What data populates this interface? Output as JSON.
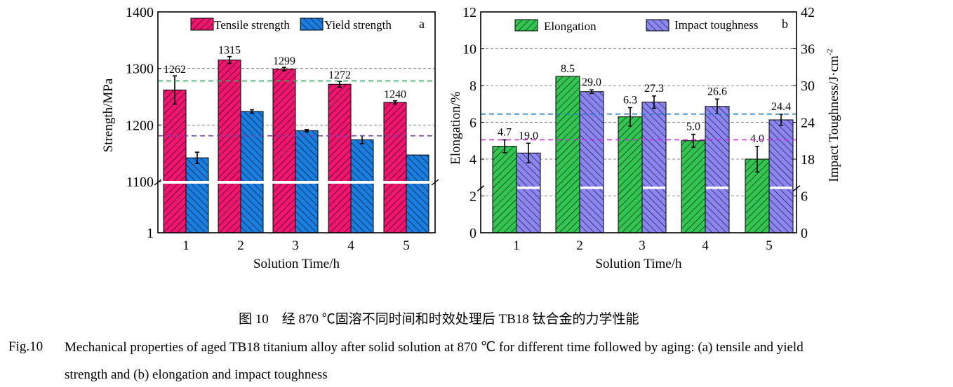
{
  "chart_data": [
    {
      "type": "bar",
      "panel_label": "a",
      "xlabel": "Solution Time/h",
      "ylabel": "Strength/MPa",
      "categories": [
        "1",
        "2",
        "3",
        "4",
        "5"
      ],
      "y_ticks": [
        "1400",
        "1300",
        "1200",
        "1100",
        "1"
      ],
      "axis_break": 1100,
      "ylim": [
        1100,
        1400
      ],
      "series": [
        {
          "name": "Tensile strength",
          "values": [
            1262,
            1315,
            1299,
            1272,
            1240
          ],
          "errors": [
            25,
            6,
            3,
            5,
            3
          ],
          "labels": [
            "1262",
            "1315",
            "1299",
            "1272",
            "1240"
          ],
          "color": "#f0156e"
        },
        {
          "name": "Yield strength",
          "values": [
            1142,
            1224,
            1190,
            1174,
            1147
          ],
          "errors": [
            10,
            3,
            2,
            7,
            0
          ],
          "color": "#1a7de0"
        }
      ],
      "reference_lines": [
        {
          "value": 1278,
          "color": "#2bb35a"
        },
        {
          "value": 1181,
          "color": "#7b3fb0"
        }
      ],
      "grid": "dashed horizontal"
    },
    {
      "type": "bar",
      "panel_label": "b",
      "xlabel": "Solution Time/h",
      "ylabel": "Elongation/%",
      "ylabel_right": "Impact Toughness/J·cm",
      "ylabel_right_sup": "-2",
      "categories": [
        "1",
        "2",
        "3",
        "4",
        "5"
      ],
      "y_ticks": [
        "12",
        "10",
        "8",
        "6",
        "4",
        "2",
        "0"
      ],
      "y_ticks_right": [
        "42",
        "36",
        "30",
        "24",
        "18",
        "6",
        "0"
      ],
      "ylim": [
        0,
        12
      ],
      "ylim_right": [
        0,
        42
      ],
      "series": [
        {
          "name": "Elongation",
          "axis": "left",
          "values": [
            4.7,
            8.5,
            6.3,
            5.0,
            4.0
          ],
          "errors": [
            0.35,
            0,
            0.5,
            0.35,
            0.7
          ],
          "labels": [
            "4.7",
            "8.5",
            "6.3",
            "5.0",
            "4.0"
          ],
          "color": "#33c552"
        },
        {
          "name": "Impact toughness",
          "axis": "right",
          "values": [
            19.0,
            29.0,
            27.3,
            26.6,
            24.4
          ],
          "errors": [
            1.6,
            0.3,
            1.0,
            1.2,
            0.9
          ],
          "labels": [
            "19.0",
            "29.0",
            "27.3",
            "26.6",
            "24.4"
          ],
          "color": "#8b86f2"
        }
      ],
      "reference_lines": [
        {
          "value": 6.45,
          "axis": "left",
          "color": "#1f7fd0"
        },
        {
          "value": 5.05,
          "axis": "left",
          "color": "#e020e0"
        }
      ],
      "grid": "dashed horizontal"
    }
  ],
  "caption": {
    "cn": "图 10　经 870 ℃固溶不同时间和时效处理后 TB18 钛合金的力学性能",
    "en_label": "Fig.10",
    "en_line1": "Mechanical properties of aged TB18 titanium alloy after solid solution at 870 ℃ for different time followed by aging: (a) tensile and yield",
    "en_line2": "strength and (b) elongation and impact toughness"
  }
}
